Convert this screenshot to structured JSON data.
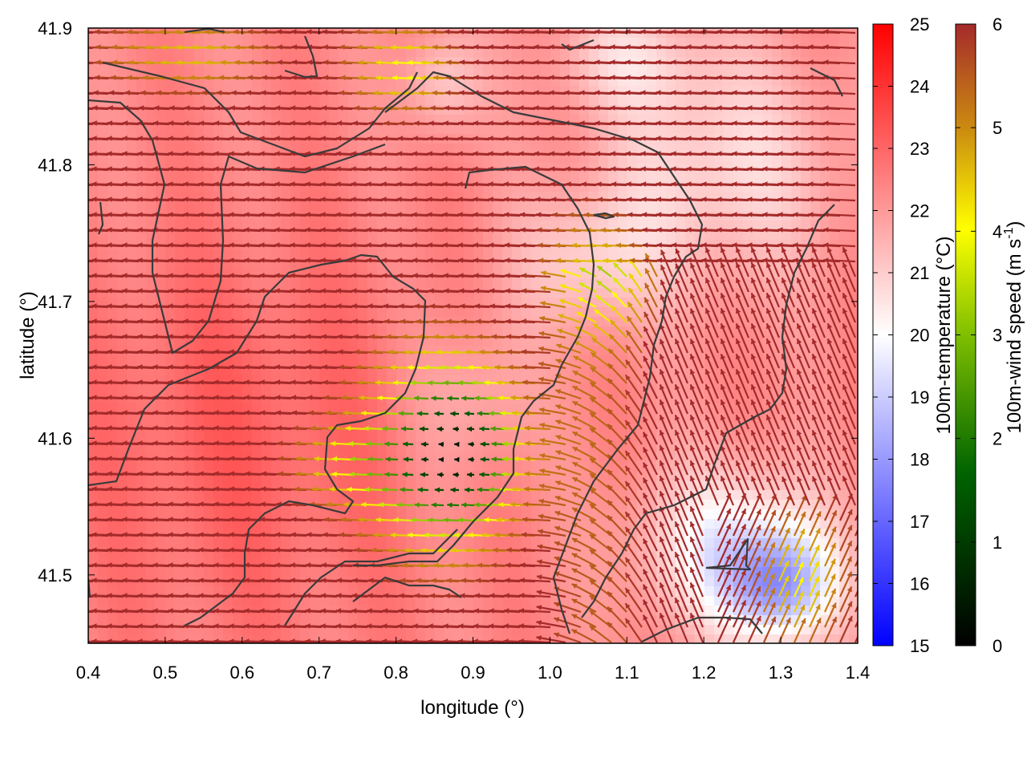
{
  "chart_data": {
    "type": "heatmap",
    "xlabel": "longitude (°)",
    "ylabel": "latitude (°)",
    "xlim": [
      0.4,
      1.4
    ],
    "ylim": [
      41.45,
      41.9
    ],
    "x_ticks": [
      "0.4",
      "0.5",
      "0.6",
      "0.7",
      "0.8",
      "0.9",
      "1.0",
      "1.1",
      "1.2",
      "1.3",
      "1.4"
    ],
    "x_tick_values": [
      0.4,
      0.5,
      0.6,
      0.7,
      0.8,
      0.9,
      1.0,
      1.1,
      1.2,
      1.3,
      1.4
    ],
    "y_ticks": [
      "41.5",
      "41.6",
      "41.7",
      "41.8",
      "41.9"
    ],
    "y_tick_values": [
      41.5,
      41.6,
      41.7,
      41.8,
      41.9
    ],
    "grid": false,
    "temperature_colorbar": {
      "label": "100m-temperature (°C)",
      "range": [
        15,
        25
      ],
      "ticks": [
        "15",
        "16",
        "17",
        "18",
        "19",
        "20",
        "21",
        "22",
        "23",
        "24",
        "25"
      ],
      "tick_values": [
        15,
        16,
        17,
        18,
        19,
        20,
        21,
        22,
        23,
        24,
        25
      ],
      "colors": [
        "#0000ff",
        "#ffffff",
        "#ff0000"
      ]
    },
    "wind_speed_colorbar": {
      "label": "100m-wind speed (m s-1)",
      "label_main": "100m-wind speed (m s",
      "label_sup": "-1",
      "label_end": ")",
      "range": [
        0,
        6
      ],
      "ticks": [
        "0",
        "1",
        "2",
        "3",
        "4",
        "5",
        "6"
      ],
      "tick_values": [
        0,
        1,
        2,
        3,
        4,
        5,
        6
      ],
      "colors": [
        "#000000",
        "#006400",
        "#7fbf00",
        "#ffff00",
        "#cc8c10",
        "#a52a2a"
      ]
    },
    "series": [
      {
        "type": "heatmap",
        "variable": "100m-temperature"
      },
      {
        "type": "vector",
        "variable": "100m-wind"
      },
      {
        "type": "line",
        "variable": "contour"
      }
    ]
  }
}
